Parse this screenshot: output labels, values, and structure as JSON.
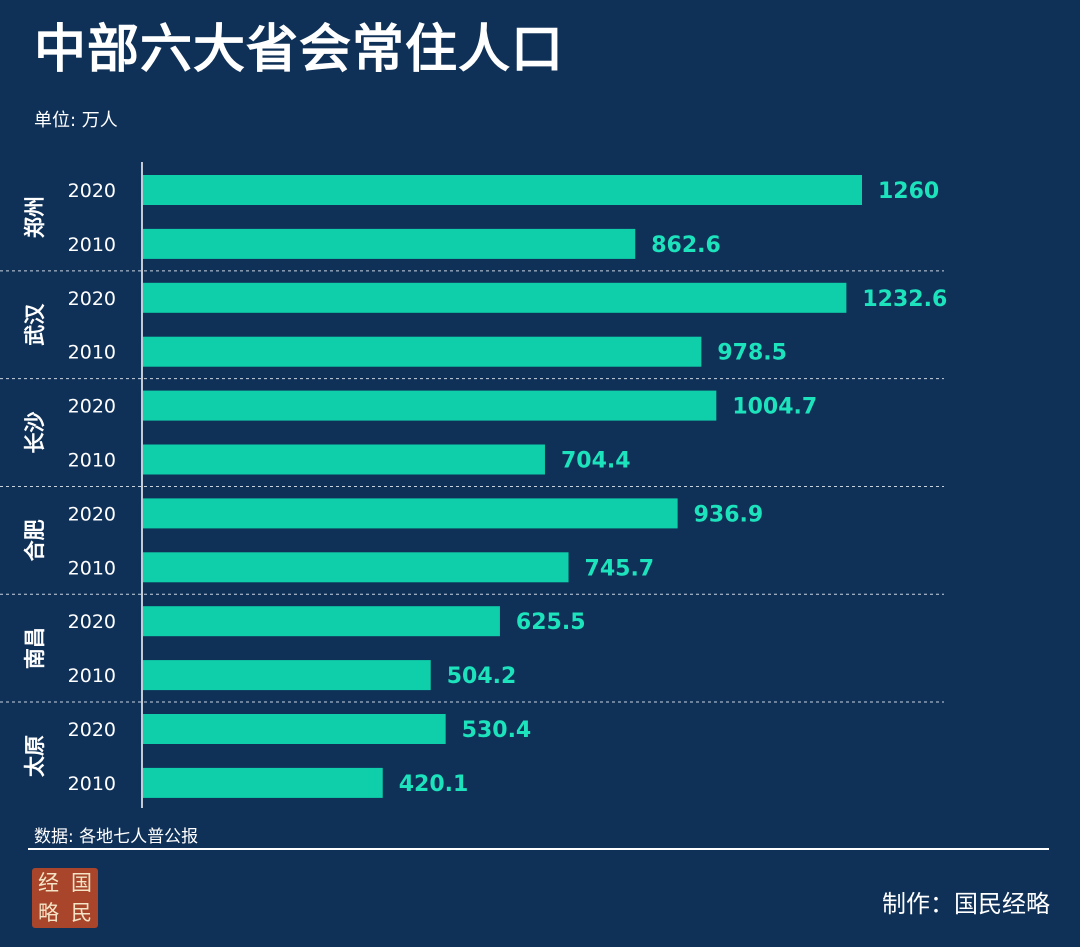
{
  "title": "中部六大省会常住人口",
  "unit_label": "单位: 万人",
  "source": "数据: 各地七人普公报",
  "credit": "制作：国民经略",
  "logo": [
    "经",
    "国",
    "略",
    "民"
  ],
  "colors": {
    "background": "#0f3158",
    "bar": "#0fcfaa",
    "value_label": "#1de3bd",
    "text": "#ffffff"
  },
  "chart_data": {
    "type": "bar",
    "orientation": "horizontal",
    "title": "中部六大省会常住人口",
    "unit": "万人",
    "grid": false,
    "groups": [
      {
        "city": "郑州",
        "rows": [
          {
            "year": "2020",
            "value": 1260
          },
          {
            "year": "2010",
            "value": 862.6
          }
        ]
      },
      {
        "city": "武汉",
        "rows": [
          {
            "year": "2020",
            "value": 1232.6
          },
          {
            "year": "2010",
            "value": 978.5
          }
        ]
      },
      {
        "city": "长沙",
        "rows": [
          {
            "year": "2020",
            "value": 1004.7
          },
          {
            "year": "2010",
            "value": 704.4
          }
        ]
      },
      {
        "city": "合肥",
        "rows": [
          {
            "year": "2020",
            "value": 936.9
          },
          {
            "year": "2010",
            "value": 745.7
          }
        ]
      },
      {
        "city": "南昌",
        "rows": [
          {
            "year": "2020",
            "value": 625.5
          },
          {
            "year": "2010",
            "value": 504.2
          }
        ]
      },
      {
        "city": "太原",
        "rows": [
          {
            "year": "2020",
            "value": 530.4
          },
          {
            "year": "2010",
            "value": 420.1
          }
        ]
      }
    ],
    "value_labels": [
      "1260",
      "862.6",
      "1232.6",
      "978.5",
      "1004.7",
      "704.4",
      "936.9",
      "745.7",
      "625.5",
      "504.2",
      "530.4",
      "420.1"
    ],
    "xlim": [
      0,
      1260
    ]
  }
}
